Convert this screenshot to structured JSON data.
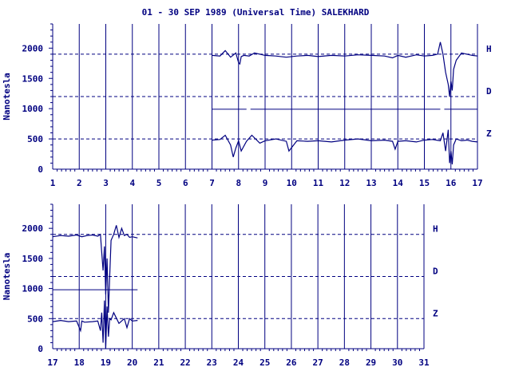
{
  "header": {
    "title": "01 - 30 SEP 1989 (Universal Time) SALEKHARD"
  },
  "colors": {
    "ink": "#000080",
    "background": "#ffffff"
  },
  "chart_data": [
    {
      "type": "line",
      "panel": "top",
      "xlabel": "",
      "ylabel": "Nanotesla",
      "xlim": [
        1,
        17
      ],
      "xticks": [
        1,
        2,
        3,
        4,
        5,
        6,
        7,
        8,
        9,
        10,
        11,
        12,
        13,
        14,
        15,
        16,
        17
      ],
      "ylim": [
        0,
        2400
      ],
      "yticks": [
        0,
        500,
        1000,
        1500,
        2000
      ],
      "grid": "vertical solid at each day; dashed reference lines at 1900, 1200, 500",
      "component_labels": [
        "H",
        "D",
        "Z"
      ],
      "reference_levels": {
        "H": 1900,
        "D": 1200,
        "Z": 500
      },
      "series": [
        {
          "name": "H",
          "x": [
            7.0,
            7.3,
            7.5,
            7.7,
            7.9,
            8.0,
            8.05,
            8.1,
            8.2,
            8.4,
            8.6,
            9.0,
            9.4,
            9.8,
            10.2,
            10.6,
            11.0,
            11.5,
            12.0,
            12.5,
            13.0,
            13.5,
            13.8,
            14.0,
            14.3,
            14.7,
            15.0,
            15.3,
            15.5,
            15.6,
            15.7,
            15.8,
            15.9,
            15.95,
            16.0,
            16.05,
            16.1,
            16.2,
            16.4,
            16.6,
            16.8,
            17.0
          ],
          "values": [
            1880,
            1870,
            1960,
            1850,
            1920,
            1760,
            1740,
            1860,
            1880,
            1870,
            1920,
            1880,
            1870,
            1850,
            1870,
            1880,
            1860,
            1880,
            1870,
            1890,
            1880,
            1870,
            1840,
            1880,
            1850,
            1890,
            1870,
            1880,
            1900,
            2100,
            1900,
            1600,
            1400,
            1200,
            1450,
            1300,
            1650,
            1800,
            1920,
            1900,
            1880,
            1870
          ]
        },
        {
          "name": "D",
          "x": [
            7.0,
            8.3,
            8.45,
            15.6,
            15.75,
            17.0
          ],
          "values": [
            990,
            990,
            990,
            990,
            990,
            990
          ]
        },
        {
          "name": "Z",
          "x": [
            7.0,
            7.3,
            7.5,
            7.7,
            7.8,
            7.9,
            8.0,
            8.1,
            8.3,
            8.5,
            8.8,
            9.0,
            9.4,
            9.8,
            9.9,
            10.2,
            10.6,
            11.0,
            11.5,
            12.0,
            12.5,
            13.0,
            13.5,
            13.8,
            13.9,
            14.0,
            14.3,
            14.7,
            15.0,
            15.3,
            15.6,
            15.7,
            15.8,
            15.9,
            15.95,
            16.0,
            16.05,
            16.1,
            16.2,
            16.4,
            16.6,
            16.8,
            17.0
          ],
          "values": [
            480,
            490,
            560,
            400,
            200,
            350,
            470,
            300,
            460,
            560,
            430,
            470,
            500,
            460,
            300,
            470,
            460,
            470,
            450,
            480,
            500,
            470,
            480,
            460,
            330,
            460,
            470,
            450,
            480,
            490,
            470,
            600,
            300,
            650,
            100,
            300,
            80,
            400,
            500,
            470,
            480,
            460,
            450
          ]
        }
      ]
    },
    {
      "type": "line",
      "panel": "bottom",
      "xlabel": "",
      "ylabel": "Nanotesla",
      "xlim": [
        17,
        31
      ],
      "xticks": [
        17,
        18,
        19,
        20,
        21,
        22,
        23,
        24,
        25,
        26,
        27,
        28,
        29,
        30,
        31
      ],
      "ylim": [
        0,
        2400
      ],
      "yticks": [
        0,
        500,
        1000,
        1500,
        2000
      ],
      "grid": "vertical solid at each day; dashed reference lines at 1900, 1200, 500",
      "component_labels": [
        "H",
        "D",
        "Z"
      ],
      "reference_levels": {
        "H": 1900,
        "D": 1200,
        "Z": 500
      },
      "series": [
        {
          "name": "H",
          "x": [
            17.0,
            17.3,
            17.6,
            17.9,
            18.1,
            18.3,
            18.5,
            18.7,
            18.8,
            18.85,
            18.9,
            18.95,
            19.0,
            19.05,
            19.1,
            19.15,
            19.2,
            19.3,
            19.4,
            19.5,
            19.6,
            19.7,
            19.8,
            19.9,
            20.0,
            20.2
          ],
          "values": [
            1860,
            1880,
            1870,
            1890,
            1860,
            1880,
            1890,
            1870,
            1900,
            1600,
            1300,
            1700,
            900,
            1500,
            600,
            1200,
            1800,
            1900,
            2050,
            1850,
            2000,
            1880,
            1900,
            1850,
            1860,
            1840
          ]
        },
        {
          "name": "D",
          "x": [
            17.0,
            20.2
          ],
          "values": [
            980,
            980
          ]
        },
        {
          "name": "Z",
          "x": [
            17.0,
            17.3,
            17.6,
            17.9,
            18.05,
            18.1,
            18.2,
            18.5,
            18.7,
            18.8,
            18.85,
            18.9,
            18.95,
            19.0,
            19.05,
            19.1,
            19.15,
            19.2,
            19.3,
            19.5,
            19.7,
            19.8,
            19.9,
            20.0,
            20.2
          ],
          "values": [
            450,
            470,
            450,
            460,
            300,
            460,
            440,
            450,
            460,
            300,
            600,
            100,
            800,
            0,
            700,
            200,
            500,
            480,
            600,
            420,
            500,
            350,
            500,
            460,
            470
          ]
        }
      ]
    }
  ]
}
